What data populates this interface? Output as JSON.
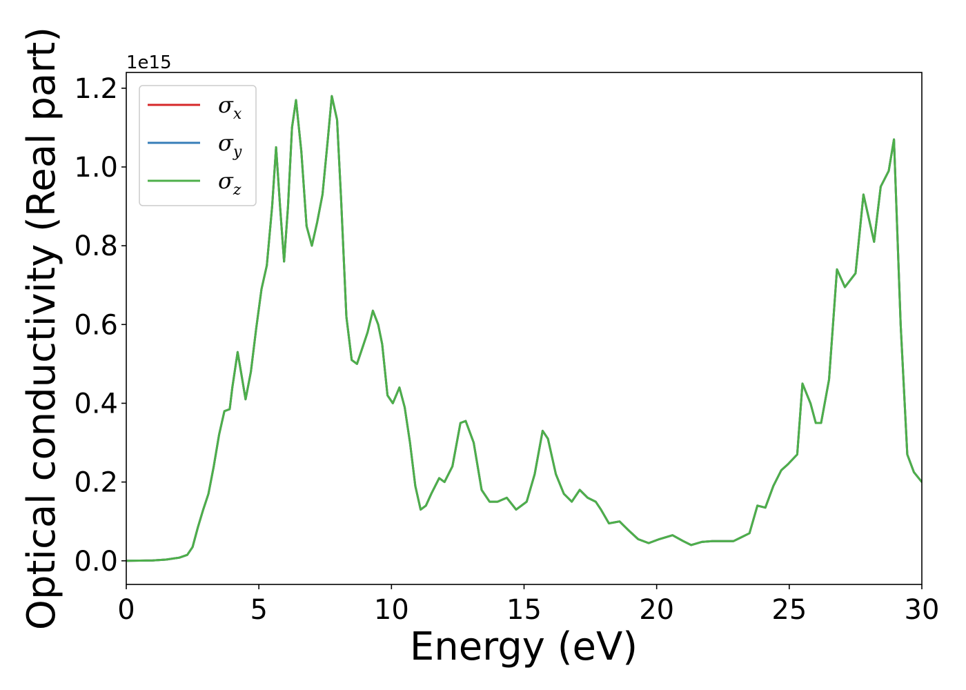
{
  "chart_data": {
    "type": "line",
    "xlabel": "Energy (eV)",
    "ylabel": "Optical conductivity (Real part)",
    "y_offset_text": "1e15",
    "xlim": [
      0,
      30
    ],
    "ylim": [
      -0.06,
      1.24
    ],
    "y_scale_factor": 1000000000000000.0,
    "xticks": [
      0,
      5,
      10,
      15,
      20,
      25,
      30
    ],
    "xtick_labels": [
      "0",
      "5",
      "10",
      "15",
      "20",
      "25",
      "30"
    ],
    "yticks": [
      0.0,
      0.2,
      0.4,
      0.6,
      0.8,
      1.0,
      1.2
    ],
    "ytick_labels": [
      "0.0",
      "0.2",
      "0.4",
      "0.6",
      "0.8",
      "1.0",
      "1.2"
    ],
    "grid": false,
    "legend_position": "top-left",
    "x": [
      0,
      1,
      1.5,
      2,
      2.3,
      2.5,
      2.7,
      2.9,
      3.1,
      3.3,
      3.5,
      3.7,
      3.9,
      4.0,
      4.2,
      4.35,
      4.5,
      4.7,
      4.9,
      5.1,
      5.3,
      5.5,
      5.65,
      5.8,
      5.95,
      6.1,
      6.25,
      6.4,
      6.6,
      6.8,
      7.0,
      7.2,
      7.4,
      7.6,
      7.75,
      7.95,
      8.1,
      8.3,
      8.5,
      8.7,
      8.9,
      9.1,
      9.3,
      9.5,
      9.65,
      9.85,
      10.05,
      10.3,
      10.5,
      10.7,
      10.9,
      11.1,
      11.3,
      11.5,
      11.8,
      12.0,
      12.3,
      12.6,
      12.8,
      13.1,
      13.4,
      13.7,
      14.0,
      14.35,
      14.7,
      15.1,
      15.4,
      15.7,
      15.9,
      16.2,
      16.5,
      16.8,
      17.1,
      17.4,
      17.7,
      17.9,
      18.2,
      18.6,
      18.9,
      19.3,
      19.7,
      20.1,
      20.6,
      21.0,
      21.3,
      21.7,
      22.1,
      22.6,
      22.9,
      23.2,
      23.5,
      23.8,
      24.1,
      24.4,
      24.7,
      24.95,
      25.3,
      25.5,
      25.8,
      26.0,
      26.2,
      26.5,
      26.8,
      27.1,
      27.5,
      27.8,
      28.2,
      28.45,
      28.75,
      28.95,
      29.2,
      29.45,
      29.7,
      30.0
    ],
    "series": [
      {
        "name": "σx",
        "color": "#d62728",
        "y": [
          0.0,
          0.001,
          0.003,
          0.008,
          0.015,
          0.035,
          0.085,
          0.13,
          0.17,
          0.24,
          0.32,
          0.38,
          0.385,
          0.44,
          0.53,
          0.47,
          0.41,
          0.48,
          0.59,
          0.69,
          0.75,
          0.9,
          1.05,
          0.9,
          0.76,
          0.9,
          1.1,
          1.17,
          1.04,
          0.85,
          0.8,
          0.86,
          0.93,
          1.07,
          1.18,
          1.12,
          0.92,
          0.62,
          0.51,
          0.5,
          0.54,
          0.58,
          0.635,
          0.6,
          0.55,
          0.42,
          0.4,
          0.44,
          0.39,
          0.3,
          0.19,
          0.13,
          0.14,
          0.17,
          0.21,
          0.2,
          0.24,
          0.35,
          0.355,
          0.3,
          0.18,
          0.15,
          0.15,
          0.16,
          0.13,
          0.15,
          0.22,
          0.33,
          0.31,
          0.22,
          0.17,
          0.15,
          0.18,
          0.16,
          0.15,
          0.13,
          0.095,
          0.1,
          0.08,
          0.055,
          0.045,
          0.055,
          0.065,
          0.05,
          0.04,
          0.048,
          0.05,
          0.05,
          0.05,
          0.06,
          0.07,
          0.14,
          0.135,
          0.19,
          0.23,
          0.245,
          0.27,
          0.45,
          0.4,
          0.35,
          0.35,
          0.46,
          0.74,
          0.695,
          0.73,
          0.93,
          0.81,
          0.95,
          0.99,
          1.07,
          0.6,
          0.27,
          0.225,
          0.2
        ]
      },
      {
        "name": "σy",
        "color": "#377eb8",
        "y": [
          0.0,
          0.001,
          0.003,
          0.008,
          0.015,
          0.035,
          0.085,
          0.13,
          0.17,
          0.24,
          0.32,
          0.38,
          0.385,
          0.44,
          0.53,
          0.47,
          0.41,
          0.48,
          0.59,
          0.69,
          0.75,
          0.9,
          1.05,
          0.9,
          0.76,
          0.9,
          1.1,
          1.17,
          1.04,
          0.85,
          0.8,
          0.86,
          0.93,
          1.07,
          1.18,
          1.12,
          0.92,
          0.62,
          0.51,
          0.5,
          0.54,
          0.58,
          0.635,
          0.6,
          0.55,
          0.42,
          0.4,
          0.44,
          0.39,
          0.3,
          0.19,
          0.13,
          0.14,
          0.17,
          0.21,
          0.2,
          0.24,
          0.35,
          0.355,
          0.3,
          0.18,
          0.15,
          0.15,
          0.16,
          0.13,
          0.15,
          0.22,
          0.33,
          0.31,
          0.22,
          0.17,
          0.15,
          0.18,
          0.16,
          0.15,
          0.13,
          0.095,
          0.1,
          0.08,
          0.055,
          0.045,
          0.055,
          0.065,
          0.05,
          0.04,
          0.048,
          0.05,
          0.05,
          0.05,
          0.06,
          0.07,
          0.14,
          0.135,
          0.19,
          0.23,
          0.245,
          0.27,
          0.45,
          0.4,
          0.35,
          0.35,
          0.46,
          0.74,
          0.695,
          0.73,
          0.93,
          0.81,
          0.95,
          0.99,
          1.07,
          0.6,
          0.27,
          0.225,
          0.2
        ]
      },
      {
        "name": "σz",
        "color": "#4daf4a",
        "y": [
          0.0,
          0.001,
          0.003,
          0.008,
          0.015,
          0.035,
          0.085,
          0.13,
          0.17,
          0.24,
          0.32,
          0.38,
          0.385,
          0.44,
          0.53,
          0.47,
          0.41,
          0.48,
          0.59,
          0.69,
          0.75,
          0.9,
          1.05,
          0.9,
          0.76,
          0.9,
          1.1,
          1.17,
          1.04,
          0.85,
          0.8,
          0.86,
          0.93,
          1.07,
          1.18,
          1.12,
          0.92,
          0.62,
          0.51,
          0.5,
          0.54,
          0.58,
          0.635,
          0.6,
          0.55,
          0.42,
          0.4,
          0.44,
          0.39,
          0.3,
          0.19,
          0.13,
          0.14,
          0.17,
          0.21,
          0.2,
          0.24,
          0.35,
          0.355,
          0.3,
          0.18,
          0.15,
          0.15,
          0.16,
          0.13,
          0.15,
          0.22,
          0.33,
          0.31,
          0.22,
          0.17,
          0.15,
          0.18,
          0.16,
          0.15,
          0.13,
          0.095,
          0.1,
          0.08,
          0.055,
          0.045,
          0.055,
          0.065,
          0.05,
          0.04,
          0.048,
          0.05,
          0.05,
          0.05,
          0.06,
          0.07,
          0.14,
          0.135,
          0.19,
          0.23,
          0.245,
          0.27,
          0.45,
          0.4,
          0.35,
          0.35,
          0.46,
          0.74,
          0.695,
          0.73,
          0.93,
          0.81,
          0.95,
          0.99,
          1.07,
          0.6,
          0.27,
          0.225,
          0.2
        ]
      }
    ],
    "legend": {
      "entries": [
        {
          "symbol": "σ",
          "subscript": "x"
        },
        {
          "symbol": "σ",
          "subscript": "y"
        },
        {
          "symbol": "σ",
          "subscript": "z"
        }
      ]
    }
  }
}
